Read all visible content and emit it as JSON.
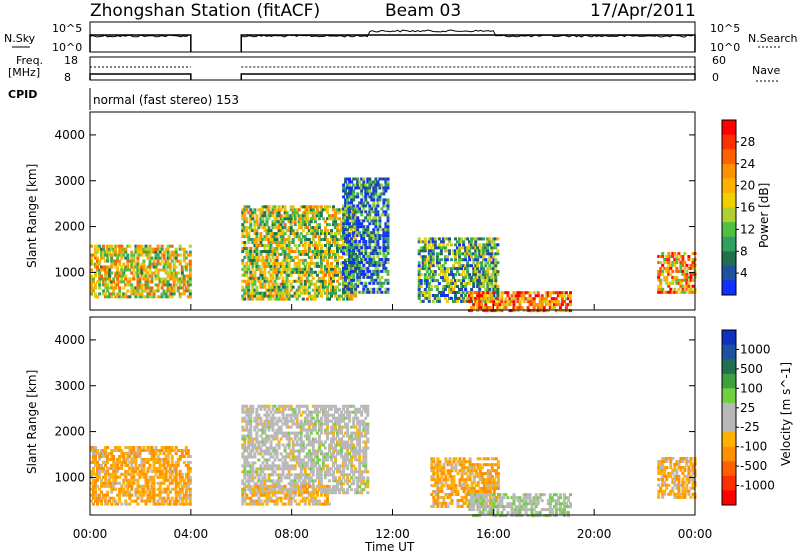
{
  "header": {
    "station": "Zhongshan Station (fitACF)",
    "beam": "Beam 03",
    "date": "17/Apr/2011"
  },
  "top_panels": {
    "nsky_label": "N.Sky",
    "nsky_ticks": [
      "10^5",
      "10^0"
    ],
    "nsearch_label": "N.Search",
    "nsearch_ticks": [
      "10^5",
      "10^0"
    ],
    "freq_label_1": "Freq.",
    "freq_label_2": "[MHz]",
    "freq_ticks": [
      "18",
      "8"
    ],
    "nave_label": "Nave",
    "nave_ticks": [
      "60",
      "0"
    ],
    "cpid_label": "CPID",
    "cpid_text": "normal (fast stereo) 153",
    "data_gaps_hours": [
      [
        4.0,
        6.0
      ]
    ]
  },
  "panel_power": {
    "ylabel": "Slant Range [km]",
    "yticks": [
      "4000",
      "3000",
      "2000",
      "1000"
    ],
    "colorbar_label": "Power [dB]",
    "colorbar_ticks": [
      "28",
      "24",
      "20",
      "16",
      "12",
      "8",
      "4"
    ],
    "colorbar_colors": [
      "#ff0000",
      "#ff3000",
      "#ff6000",
      "#ff9000",
      "#ffb000",
      "#f0d000",
      "#b0d030",
      "#50c040",
      "#30a060",
      "#207050",
      "#2050a0",
      "#1030ff"
    ]
  },
  "panel_velocity": {
    "ylabel": "Slant Range [km]",
    "yticks": [
      "4000",
      "3000",
      "2000",
      "1000"
    ],
    "colorbar_label": "Velocity [m s^-1]",
    "colorbar_ticks": [
      "1000",
      "500",
      "100",
      "25",
      "-25",
      "-100",
      "-500",
      "-1000"
    ],
    "colorbar_colors": [
      "#1030c0",
      "#2050a0",
      "#207050",
      "#40a040",
      "#70d040",
      "#b8b8b8",
      "#b8b8b8",
      "#ffb000",
      "#ff9000",
      "#ff6000",
      "#ff3000",
      "#ff0000"
    ]
  },
  "xaxis": {
    "ticks": [
      "00:00",
      "04:00",
      "08:00",
      "12:00",
      "16:00",
      "20:00",
      "00:00"
    ],
    "label": "Time UT"
  },
  "chart_data": {
    "type": "heatmap",
    "title": "Zhongshan Station (fitACF)  Beam 03  17/Apr/2011",
    "xlabel": "Time UT",
    "ylabel": "Slant Range [km]",
    "xlim_hours": [
      0,
      24
    ],
    "ylim_km": [
      180,
      4500
    ],
    "colorbar_power_range_db": [
      0,
      30
    ],
    "colorbar_velocity_range": [
      -1000,
      1000
    ],
    "data_gap_hours": [
      4.0,
      6.0
    ],
    "power_regions": [
      {
        "t": [
          0.0,
          4.0
        ],
        "r": [
          500,
          1650
        ],
        "power_db": 16
      },
      {
        "t": [
          6.0,
          10.5
        ],
        "r": [
          450,
          2500
        ],
        "power_db": 14
      },
      {
        "t": [
          10.0,
          11.8
        ],
        "r": [
          600,
          3100
        ],
        "power_db": 6
      },
      {
        "t": [
          13.0,
          16.2
        ],
        "r": [
          400,
          1800
        ],
        "power_db": 10
      },
      {
        "t": [
          15.0,
          19.0
        ],
        "r": [
          200,
          600
        ],
        "power_db": 22
      },
      {
        "t": [
          22.5,
          24.0
        ],
        "r": [
          600,
          1500
        ],
        "power_db": 20
      }
    ],
    "velocity_regions": [
      {
        "t": [
          0.0,
          4.0
        ],
        "r": [
          450,
          1700
        ],
        "velocity": -300
      },
      {
        "t": [
          6.0,
          11.0
        ],
        "r": [
          700,
          2600
        ],
        "velocity": 0
      },
      {
        "t": [
          6.0,
          9.5
        ],
        "r": [
          450,
          900
        ],
        "velocity": -200
      },
      {
        "t": [
          13.5,
          16.2
        ],
        "r": [
          400,
          1500
        ],
        "velocity": -300
      },
      {
        "t": [
          15.0,
          19.0
        ],
        "r": [
          200,
          700
        ],
        "velocity": 80
      },
      {
        "t": [
          22.5,
          24.0
        ],
        "r": [
          600,
          1500
        ],
        "velocity": -250
      }
    ]
  }
}
